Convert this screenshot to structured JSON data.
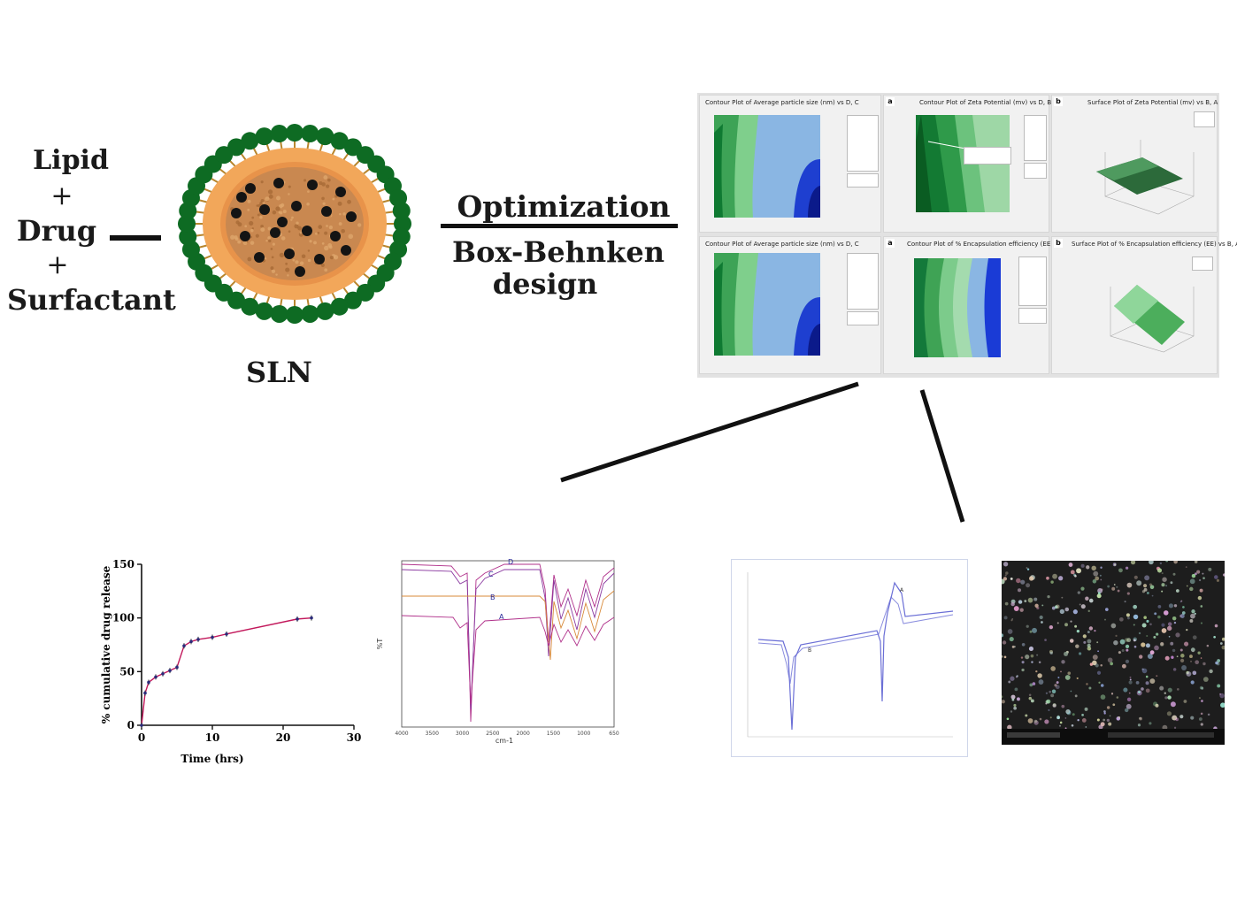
{
  "ingredients": {
    "lipid": "Lipid",
    "plus1": "+",
    "drug": "Drug",
    "plus2": "+",
    "surfactant": "Surfactant"
  },
  "sln": {
    "label": "SLN"
  },
  "process": {
    "optimization": "Optimization",
    "design_line1": "Box-Behnken",
    "design_line2": "design"
  },
  "contour_panels": [
    {
      "tag": "",
      "title": "Contour Plot of Average particle size (nm) vs D, C"
    },
    {
      "tag": "a",
      "title": "Contour Plot of Zeta Potential (mv) vs D, B"
    },
    {
      "tag": "b",
      "title": "Surface Plot of Zeta Potential (mv) vs B, A"
    },
    {
      "tag": "",
      "title": "Contour Plot of Average particle size (nm) vs D, C"
    },
    {
      "tag": "a",
      "title": "Contour Plot of % Encapsulation efficiency (EE) vs B, A"
    },
    {
      "tag": "b",
      "title": "Surface Plot of % Encapsulation efficiency (EE) vs B, A"
    }
  ],
  "colors": {
    "shell_green": "#0e6b23",
    "tail_orange": "#f2a75a",
    "core_brown": "#c98850",
    "drug_dot": "#141414",
    "release_line": "#c2185b",
    "ir_line": "#b0308a",
    "dsc_line": "#6b6fd6"
  },
  "chart_data": [
    {
      "type": "line",
      "title": "",
      "xlabel": "Time (hrs)",
      "ylabel": "% cumulative drug release",
      "xlim": [
        0,
        30
      ],
      "ylim": [
        0,
        150
      ],
      "xticks": [
        "0",
        "10",
        "20",
        "30"
      ],
      "yticks": [
        "0",
        "50",
        "100",
        "150"
      ],
      "series": [
        {
          "name": "release",
          "x": [
            0,
            0.5,
            1,
            2,
            3,
            4,
            5,
            6,
            7,
            8,
            10,
            12,
            22,
            24
          ],
          "y": [
            0,
            30,
            40,
            45,
            48,
            51,
            54,
            74,
            78,
            80,
            82,
            85,
            99,
            100
          ]
        }
      ]
    },
    {
      "type": "line",
      "title": "",
      "xlabel": "cm-1",
      "ylabel": "%T",
      "xticks": [
        "4000",
        "3500",
        "3000",
        "2500",
        "2000",
        "1500",
        "1000",
        "650"
      ],
      "curve_labels": [
        "D",
        "C",
        "B",
        "A"
      ]
    },
    {
      "type": "line",
      "title": "",
      "curve_labels": [
        "A",
        "B"
      ]
    }
  ]
}
